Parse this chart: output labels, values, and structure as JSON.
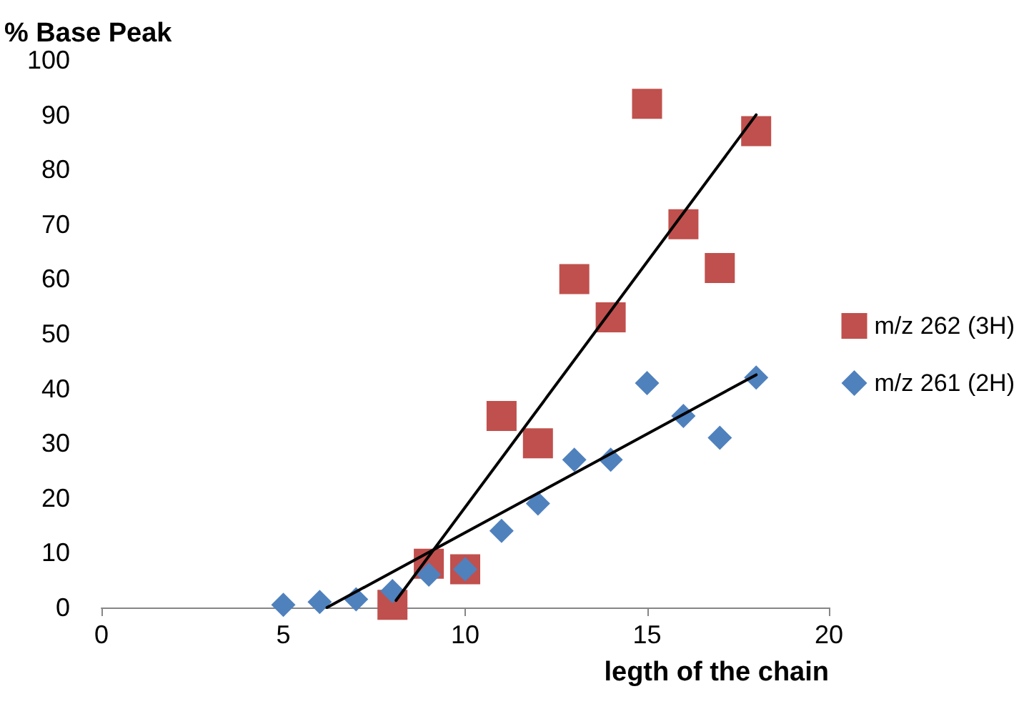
{
  "chart_data": {
    "type": "scatter",
    "xlabel": "legth of the chain",
    "ylabel": "% Base Peak",
    "xlim": [
      0,
      20
    ],
    "xticks": [
      0,
      5,
      10,
      15,
      20
    ],
    "ylim": [
      0,
      100
    ],
    "yticks": [
      0,
      10,
      20,
      30,
      40,
      50,
      60,
      70,
      80,
      90,
      100
    ],
    "grid": false,
    "legend": "right",
    "series": [
      {
        "name": "m/z 262 (3H)",
        "color": "#c0504d",
        "marker": "square",
        "x": [
          8,
          9,
          10,
          11,
          12,
          13,
          14,
          15,
          16,
          17,
          18
        ],
        "values": [
          0.5,
          8,
          7,
          35,
          30,
          60,
          53,
          92,
          70,
          62,
          87
        ]
      },
      {
        "name": "m/z 261 (2H)",
        "color": "#4f81bd",
        "marker": "diamond",
        "x": [
          5,
          6,
          7,
          8,
          9,
          10,
          11,
          12,
          13,
          14,
          15,
          16,
          17,
          18
        ],
        "values": [
          0.5,
          1,
          1.5,
          3,
          6,
          7,
          14,
          19,
          27,
          27,
          41,
          35,
          31,
          42
        ]
      },
      {
        "type": "line",
        "color": "#000000",
        "marker": "none",
        "x": [
          8.1,
          18
        ],
        "values": [
          1.3,
          90
        ]
      },
      {
        "type": "line",
        "color": "#000000",
        "marker": "none",
        "x": [
          6.2,
          18
        ],
        "values": [
          0,
          42.5
        ]
      }
    ]
  }
}
